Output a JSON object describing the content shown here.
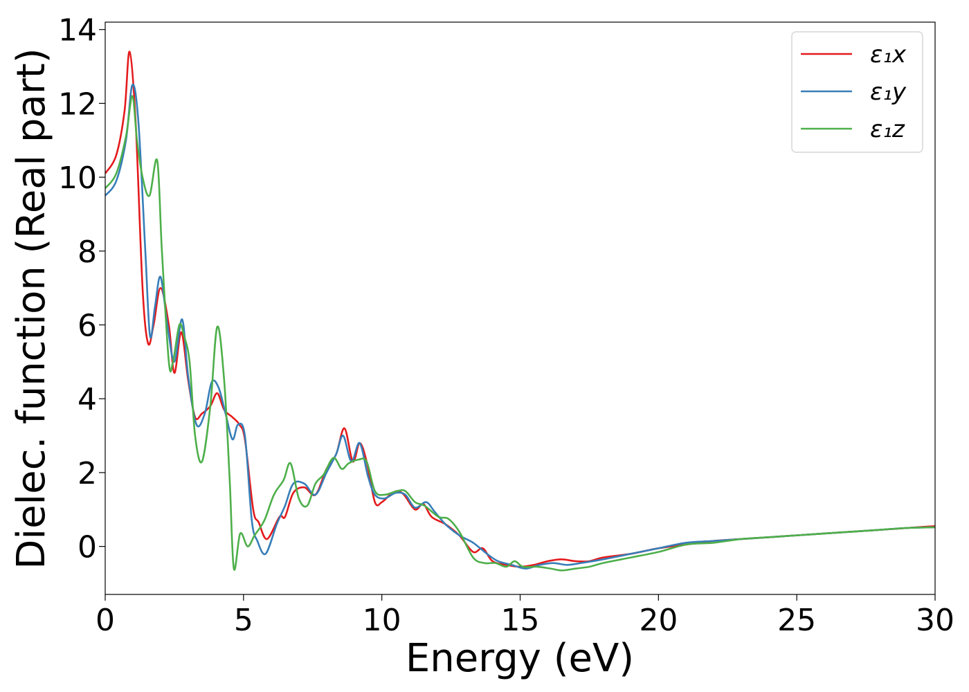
{
  "chart_data": {
    "type": "line",
    "xlabel": "Energy (eV)",
    "ylabel": "Dielec. function (Real part)",
    "xlim": [
      0,
      30
    ],
    "ylim": [
      -1.3,
      14.2
    ],
    "xticks": [
      0,
      5,
      10,
      15,
      20,
      25,
      30
    ],
    "yticks": [
      0,
      2,
      4,
      6,
      8,
      10,
      12,
      14
    ],
    "grid": false,
    "legend_position": "top-right",
    "series": [
      {
        "name": "ε₁x",
        "color": "#e41a1c",
        "x": [
          0,
          0.4,
          0.7,
          0.88,
          1.1,
          1.35,
          1.55,
          1.75,
          2.0,
          2.3,
          2.5,
          2.75,
          3.0,
          3.25,
          3.5,
          3.8,
          4.05,
          4.3,
          4.6,
          4.85,
          5.05,
          5.35,
          5.55,
          5.85,
          6.3,
          6.5,
          6.8,
          7.2,
          7.6,
          8.0,
          8.35,
          8.65,
          8.95,
          9.2,
          9.45,
          9.75,
          10.0,
          10.3,
          10.55,
          10.8,
          11.2,
          11.5,
          11.8,
          12.3,
          12.8,
          13.3,
          13.65,
          14.0,
          14.5,
          15.0,
          15.5,
          16.0,
          16.5,
          17.0,
          17.5,
          18.0,
          19.0,
          20.0,
          21.0,
          22.0,
          23.0,
          24.0,
          25.0,
          26.0,
          27.0,
          28.0,
          29.0,
          30.0
        ],
        "y": [
          10.1,
          10.6,
          11.8,
          13.4,
          11.5,
          7.0,
          5.5,
          6.0,
          7.0,
          6.0,
          4.7,
          5.8,
          4.5,
          3.5,
          3.6,
          3.8,
          4.15,
          3.7,
          3.5,
          3.3,
          2.9,
          1.0,
          0.65,
          0.2,
          0.8,
          0.8,
          1.45,
          1.6,
          1.4,
          2.1,
          2.5,
          3.2,
          2.3,
          2.8,
          2.3,
          1.2,
          1.2,
          1.4,
          1.5,
          1.4,
          1.0,
          1.15,
          0.8,
          0.6,
          0.3,
          -0.15,
          -0.05,
          -0.4,
          -0.5,
          -0.55,
          -0.5,
          -0.4,
          -0.35,
          -0.4,
          -0.4,
          -0.3,
          -0.2,
          -0.05,
          0.05,
          0.15,
          0.2,
          0.25,
          0.3,
          0.35,
          0.4,
          0.45,
          0.5,
          0.55
        ]
      },
      {
        "name": "ε₁y",
        "color": "#377eb8",
        "x": [
          0,
          0.4,
          0.75,
          0.98,
          1.2,
          1.45,
          1.62,
          1.8,
          2.0,
          2.25,
          2.5,
          2.78,
          3.0,
          3.3,
          3.6,
          3.85,
          4.1,
          4.35,
          4.6,
          4.8,
          5.05,
          5.3,
          5.5,
          5.8,
          6.2,
          6.5,
          6.8,
          7.2,
          7.6,
          8.0,
          8.35,
          8.6,
          8.9,
          9.2,
          9.5,
          9.75,
          10.1,
          10.5,
          10.85,
          11.2,
          11.6,
          11.9,
          12.3,
          12.8,
          13.3,
          13.8,
          14.2,
          14.7,
          15.2,
          15.7,
          16.2,
          16.7,
          17.2,
          18.0,
          19.0,
          20.0,
          21.0,
          22.0,
          23.0,
          24.0,
          25.0,
          26.0,
          27.0,
          28.0,
          29.0,
          30.0
        ],
        "y": [
          9.5,
          9.9,
          11.0,
          12.5,
          11.5,
          8.0,
          5.7,
          6.5,
          7.3,
          6.0,
          5.0,
          6.15,
          4.6,
          3.3,
          3.6,
          4.45,
          4.3,
          3.6,
          2.9,
          3.3,
          3.0,
          0.7,
          0.15,
          -0.2,
          0.6,
          1.1,
          1.7,
          1.7,
          1.4,
          2.0,
          2.5,
          3.0,
          2.3,
          2.8,
          1.9,
          1.4,
          1.3,
          1.45,
          1.4,
          1.05,
          1.2,
          0.95,
          0.6,
          0.3,
          0.1,
          -0.2,
          -0.4,
          -0.5,
          -0.6,
          -0.5,
          -0.45,
          -0.5,
          -0.45,
          -0.35,
          -0.2,
          -0.05,
          0.1,
          0.15,
          0.2,
          0.25,
          0.3,
          0.35,
          0.4,
          0.45,
          0.5,
          0.52
        ]
      },
      {
        "name": "ε₁z",
        "color": "#4daf4a",
        "x": [
          0,
          0.4,
          0.75,
          0.98,
          1.15,
          1.35,
          1.6,
          1.88,
          2.05,
          2.3,
          2.45,
          2.68,
          2.85,
          3.05,
          3.25,
          3.5,
          3.8,
          4.05,
          4.3,
          4.5,
          4.65,
          4.88,
          5.15,
          5.4,
          5.75,
          6.1,
          6.45,
          6.7,
          7.0,
          7.3,
          7.6,
          7.9,
          8.25,
          8.55,
          8.8,
          9.15,
          9.45,
          9.75,
          10.1,
          10.55,
          10.85,
          11.2,
          11.55,
          12.05,
          12.4,
          12.8,
          13.3,
          13.7,
          14.1,
          14.5,
          14.8,
          15.1,
          15.6,
          16.1,
          16.5,
          17.0,
          17.5,
          18.0,
          19.0,
          20.0,
          21.0,
          22.0,
          23.0,
          24.0,
          25.0,
          26.0,
          27.0,
          28.0,
          29.0,
          30.0
        ],
        "y": [
          9.7,
          10.1,
          11.1,
          12.2,
          11.0,
          10.0,
          9.5,
          10.45,
          8.0,
          5.0,
          5.0,
          6.0,
          5.7,
          5.0,
          3.0,
          2.3,
          3.8,
          5.95,
          4.5,
          1.8,
          -0.6,
          0.35,
          0.0,
          0.3,
          0.7,
          1.4,
          1.8,
          2.25,
          1.3,
          1.1,
          1.7,
          1.95,
          2.4,
          2.1,
          2.25,
          2.35,
          2.3,
          1.5,
          1.4,
          1.5,
          1.5,
          1.2,
          1.1,
          0.8,
          0.75,
          0.4,
          -0.3,
          -0.45,
          -0.45,
          -0.55,
          -0.4,
          -0.55,
          -0.55,
          -0.6,
          -0.65,
          -0.6,
          -0.55,
          -0.45,
          -0.3,
          -0.15,
          0.05,
          0.1,
          0.2,
          0.25,
          0.3,
          0.35,
          0.4,
          0.45,
          0.5,
          0.52
        ]
      }
    ]
  }
}
